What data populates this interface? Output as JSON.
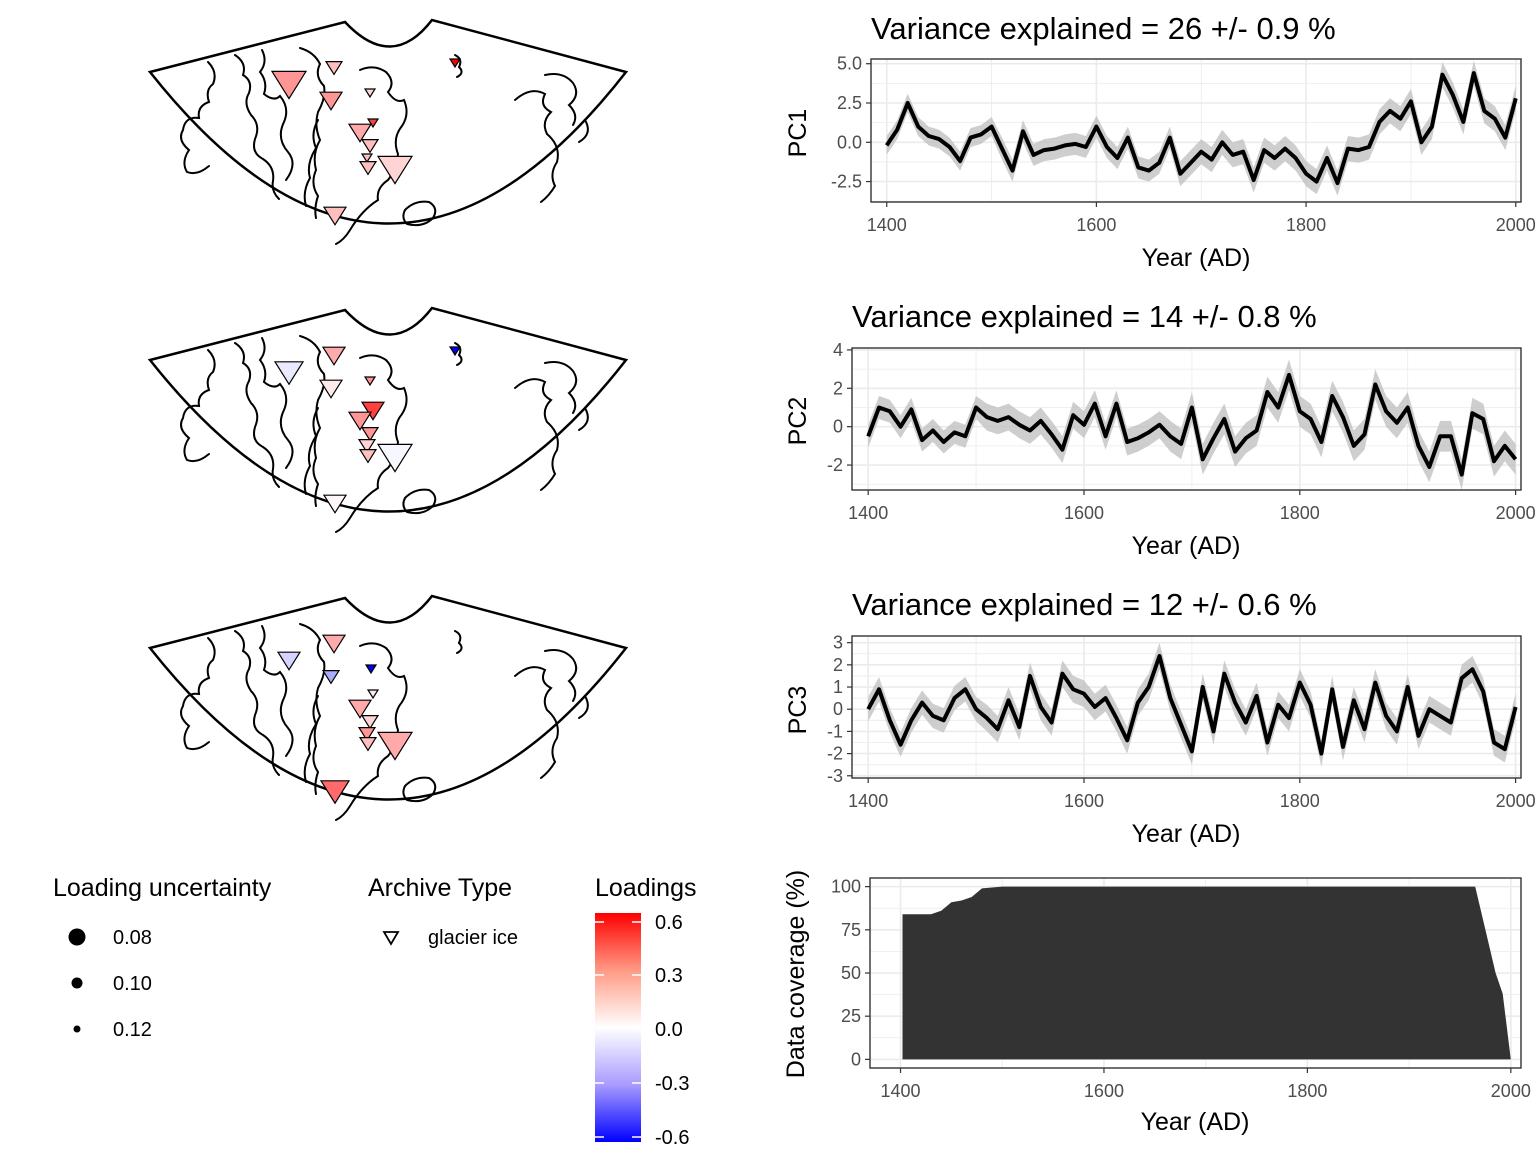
{
  "colors": {
    "loading_high": "#ff0000",
    "loading_mid": "#ffffff",
    "loading_low": "#0000ff",
    "line": "#000000",
    "ribbon": "#bdbdbd",
    "coverage_fill": "#333333",
    "grid": "#ebebeb"
  },
  "maps": [
    {
      "sites": [
        {
          "loading": 0.6,
          "unc": 0.12
        },
        {
          "loading": 0.25,
          "unc": 0.08
        },
        {
          "loading": 0.15,
          "unc": 0.11
        },
        {
          "loading": 0.25,
          "unc": 0.1
        },
        {
          "loading": 0.1,
          "unc": 0.12
        },
        {
          "loading": 0.45,
          "unc": 0.12
        },
        {
          "loading": 0.2,
          "unc": 0.1
        },
        {
          "loading": 0.15,
          "unc": 0.11
        },
        {
          "loading": 0.15,
          "unc": 0.12
        },
        {
          "loading": 0.15,
          "unc": 0.11
        },
        {
          "loading": 0.1,
          "unc": 0.08
        },
        {
          "loading": 0.15,
          "unc": 0.1
        }
      ]
    },
    {
      "sites": [
        {
          "loading": -0.6,
          "unc": 0.12
        },
        {
          "loading": -0.05,
          "unc": 0.09
        },
        {
          "loading": 0.2,
          "unc": 0.1
        },
        {
          "loading": 0.05,
          "unc": 0.1
        },
        {
          "loading": 0.25,
          "unc": 0.12
        },
        {
          "loading": 0.45,
          "unc": 0.1
        },
        {
          "loading": 0.25,
          "unc": 0.1
        },
        {
          "loading": 0.25,
          "unc": 0.11
        },
        {
          "loading": 0.1,
          "unc": 0.11
        },
        {
          "loading": 0.15,
          "unc": 0.11
        },
        {
          "loading": -0.02,
          "unc": 0.08
        },
        {
          "loading": 0.02,
          "unc": 0.1
        }
      ]
    },
    {
      "sites": [
        {
          "loading": -0.1,
          "unc": 0.1
        },
        {
          "loading": 0.2,
          "unc": 0.1
        },
        {
          "loading": -0.6,
          "unc": 0.12
        },
        {
          "loading": -0.2,
          "unc": 0.11
        },
        {
          "loading": 0.05,
          "unc": 0.12
        },
        {
          "loading": 0.2,
          "unc": 0.1
        },
        {
          "loading": 0.1,
          "unc": 0.11
        },
        {
          "loading": 0.25,
          "unc": 0.11
        },
        {
          "loading": 0.15,
          "unc": 0.11
        },
        {
          "loading": 0.2,
          "unc": 0.08
        },
        {
          "loading": 0.35,
          "unc": 0.09
        }
      ]
    }
  ],
  "legend": {
    "uncertainty_title": "Loading uncertainty",
    "uncertainty_items": [
      "0.08",
      "0.10",
      "0.12"
    ],
    "archive_title": "Archive Type",
    "archive_items": [
      "glacier ice"
    ],
    "loadings_title": "Loadings",
    "loadings_ticks": [
      "0.6",
      "0.3",
      "0.0",
      "-0.3",
      "-0.6"
    ]
  },
  "chart_data": [
    {
      "type": "line",
      "title": "Variance explained = 26 +/- 0.9 %",
      "xlabel": "Year (AD)",
      "ylabel": "PC1",
      "xlim": [
        1385,
        2005
      ],
      "ylim": [
        -3.8,
        5.3
      ],
      "x_ticks": [
        "1400",
        "1600",
        "1800",
        "2000"
      ],
      "y_ticks": [
        "5.0",
        "2.5",
        "0.0",
        "-2.5"
      ],
      "grid": true,
      "x": [
        1400,
        1410,
        1420,
        1430,
        1440,
        1450,
        1460,
        1470,
        1480,
        1490,
        1500,
        1510,
        1520,
        1530,
        1540,
        1550,
        1560,
        1570,
        1580,
        1590,
        1600,
        1610,
        1620,
        1630,
        1640,
        1650,
        1660,
        1670,
        1680,
        1690,
        1700,
        1710,
        1720,
        1730,
        1740,
        1750,
        1760,
        1770,
        1780,
        1790,
        1800,
        1810,
        1820,
        1830,
        1840,
        1850,
        1860,
        1870,
        1880,
        1890,
        1900,
        1910,
        1920,
        1930,
        1940,
        1950,
        1960,
        1970,
        1980,
        1990,
        2000
      ],
      "values": [
        -0.2,
        0.8,
        2.5,
        1.0,
        0.4,
        0.2,
        -0.3,
        -1.2,
        0.3,
        0.5,
        1.0,
        -0.4,
        -1.8,
        0.7,
        -0.8,
        -0.5,
        -0.4,
        -0.2,
        -0.1,
        -0.3,
        1.0,
        -0.3,
        -1.0,
        0.3,
        -1.6,
        -1.8,
        -1.3,
        0.3,
        -2.0,
        -1.3,
        -0.6,
        -1.1,
        0.0,
        -0.8,
        -0.6,
        -2.4,
        -0.5,
        -1.0,
        -0.4,
        -1.0,
        -2.0,
        -2.5,
        -1.0,
        -2.6,
        -0.4,
        -0.5,
        -0.3,
        1.3,
        2.0,
        1.5,
        2.6,
        0.0,
        1.0,
        4.3,
        3.0,
        1.3,
        4.4,
        2.0,
        1.5,
        0.3,
        2.8
      ],
      "band": [
        0.6,
        0.6,
        0.6,
        0.6,
        0.6,
        0.6,
        0.6,
        0.6,
        0.6,
        0.6,
        0.6,
        0.7,
        0.7,
        0.7,
        0.7,
        0.7,
        0.7,
        0.7,
        0.7,
        0.7,
        0.7,
        0.7,
        0.7,
        0.7,
        0.7,
        0.7,
        0.7,
        0.7,
        0.8,
        0.8,
        0.8,
        0.8,
        0.8,
        0.8,
        0.8,
        0.8,
        0.8,
        0.8,
        0.8,
        0.8,
        0.8,
        0.8,
        0.8,
        0.8,
        0.8,
        0.8,
        0.8,
        0.8,
        0.8,
        0.8,
        0.8,
        0.8,
        0.8,
        0.8,
        0.8,
        0.8,
        0.8,
        0.8,
        0.8,
        0.8,
        0.8
      ]
    },
    {
      "type": "line",
      "title": "Variance explained = 14 +/- 0.8 %",
      "xlabel": "Year (AD)",
      "ylabel": "PC2",
      "xlim": [
        1385,
        2005
      ],
      "ylim": [
        -3.3,
        4.1
      ],
      "x_ticks": [
        "1400",
        "1600",
        "1800",
        "2000"
      ],
      "y_ticks": [
        "4",
        "2",
        "0",
        "-2"
      ],
      "grid": true,
      "x": [
        1400,
        1410,
        1420,
        1430,
        1440,
        1450,
        1460,
        1470,
        1480,
        1490,
        1500,
        1510,
        1520,
        1530,
        1540,
        1550,
        1560,
        1570,
        1580,
        1590,
        1600,
        1610,
        1620,
        1630,
        1640,
        1650,
        1660,
        1670,
        1680,
        1690,
        1700,
        1710,
        1720,
        1730,
        1740,
        1750,
        1760,
        1770,
        1780,
        1790,
        1800,
        1810,
        1820,
        1830,
        1840,
        1850,
        1860,
        1870,
        1880,
        1890,
        1900,
        1910,
        1920,
        1930,
        1940,
        1950,
        1960,
        1970,
        1980,
        1990,
        2000
      ],
      "values": [
        -0.5,
        1.0,
        0.8,
        0.0,
        0.9,
        -0.7,
        -0.2,
        -0.8,
        -0.3,
        -0.5,
        1.0,
        0.5,
        0.3,
        0.5,
        0.1,
        -0.2,
        0.3,
        -0.4,
        -1.2,
        0.6,
        0.1,
        1.2,
        -0.5,
        1.2,
        -0.8,
        -0.6,
        -0.3,
        0.1,
        -0.5,
        -0.9,
        1.0,
        -1.7,
        -0.6,
        0.4,
        -1.3,
        -0.6,
        -0.2,
        1.8,
        1.0,
        2.7,
        0.8,
        0.4,
        -0.8,
        1.6,
        0.5,
        -1.0,
        -0.4,
        2.2,
        0.8,
        0.2,
        1.0,
        -1.0,
        -2.1,
        -0.5,
        -0.5,
        -2.5,
        0.7,
        0.4,
        -1.8,
        -1.0,
        -1.7
      ],
      "band": [
        0.6,
        0.6,
        0.6,
        0.6,
        0.6,
        0.6,
        0.6,
        0.6,
        0.6,
        0.6,
        0.6,
        0.7,
        0.7,
        0.7,
        0.7,
        0.7,
        0.7,
        0.7,
        0.7,
        0.7,
        0.7,
        0.7,
        0.7,
        0.7,
        0.7,
        0.7,
        0.7,
        0.7,
        0.8,
        0.8,
        0.8,
        0.8,
        0.8,
        0.8,
        0.8,
        0.8,
        0.8,
        0.8,
        0.8,
        0.8,
        0.8,
        0.8,
        0.8,
        0.8,
        0.8,
        0.8,
        0.8,
        0.8,
        0.8,
        0.8,
        0.8,
        0.8,
        0.8,
        0.8,
        0.8,
        0.8,
        0.8,
        0.8,
        0.8,
        0.8,
        0.8
      ]
    },
    {
      "type": "line",
      "title": "Variance explained = 12 +/- 0.6 %",
      "xlabel": "Year (AD)",
      "ylabel": "PC3",
      "xlim": [
        1385,
        2005
      ],
      "ylim": [
        -3.1,
        3.3
      ],
      "x_ticks": [
        "1400",
        "1600",
        "1800",
        "2000"
      ],
      "y_ticks": [
        "3",
        "2",
        "1",
        "0",
        "-1",
        "-2",
        "-3"
      ],
      "grid": true,
      "x": [
        1400,
        1410,
        1420,
        1430,
        1440,
        1450,
        1460,
        1470,
        1480,
        1490,
        1500,
        1510,
        1520,
        1530,
        1540,
        1550,
        1560,
        1570,
        1580,
        1590,
        1600,
        1610,
        1620,
        1630,
        1640,
        1650,
        1660,
        1670,
        1680,
        1690,
        1700,
        1710,
        1720,
        1730,
        1740,
        1750,
        1760,
        1770,
        1780,
        1790,
        1800,
        1810,
        1820,
        1830,
        1840,
        1850,
        1860,
        1870,
        1880,
        1890,
        1900,
        1910,
        1920,
        1930,
        1940,
        1950,
        1960,
        1970,
        1980,
        1990,
        2000
      ],
      "values": [
        0.0,
        0.9,
        -0.5,
        -1.6,
        -0.5,
        0.3,
        -0.3,
        -0.5,
        0.5,
        0.9,
        0.0,
        -0.4,
        -0.9,
        0.4,
        -0.8,
        1.5,
        0.1,
        -0.6,
        1.6,
        0.9,
        0.7,
        0.1,
        0.5,
        -0.4,
        -1.4,
        0.3,
        1.0,
        2.4,
        0.5,
        -0.7,
        -1.9,
        1.0,
        -1.0,
        1.6,
        0.3,
        -0.6,
        0.6,
        -1.5,
        0.2,
        -0.4,
        1.2,
        0.2,
        -2.0,
        0.9,
        -1.7,
        0.4,
        -0.9,
        1.2,
        -0.3,
        -1.0,
        1.0,
        -1.2,
        0.0,
        -0.3,
        -0.6,
        1.4,
        1.8,
        0.8,
        -1.5,
        -1.8,
        0.1
      ],
      "band": [
        0.55,
        0.55,
        0.55,
        0.55,
        0.55,
        0.55,
        0.55,
        0.55,
        0.55,
        0.55,
        0.55,
        0.6,
        0.6,
        0.6,
        0.6,
        0.6,
        0.6,
        0.6,
        0.6,
        0.6,
        0.6,
        0.6,
        0.6,
        0.6,
        0.6,
        0.6,
        0.6,
        0.6,
        0.6,
        0.6,
        0.6,
        0.6,
        0.6,
        0.6,
        0.6,
        0.6,
        0.6,
        0.6,
        0.6,
        0.6,
        0.6,
        0.6,
        0.6,
        0.6,
        0.6,
        0.6,
        0.6,
        0.6,
        0.6,
        0.6,
        0.6,
        0.6,
        0.6,
        0.6,
        0.6,
        0.6,
        0.6,
        0.6,
        0.6,
        0.6,
        0.6
      ]
    },
    {
      "type": "area",
      "title": "",
      "xlabel": "Year (AD)",
      "ylabel": "Data coverage (%)",
      "xlim": [
        1370,
        2010
      ],
      "ylim": [
        -5,
        105
      ],
      "x_ticks": [
        "1400",
        "1600",
        "1800",
        "2000"
      ],
      "y_ticks": [
        "100",
        "75",
        "50",
        "25",
        "0"
      ],
      "grid": true,
      "x": [
        1402,
        1410,
        1420,
        1430,
        1440,
        1450,
        1460,
        1470,
        1480,
        1500,
        1600,
        1700,
        1800,
        1900,
        1965,
        1975,
        1985,
        1992,
        2000
      ],
      "values": [
        84,
        84,
        84,
        84,
        86,
        91,
        92,
        94,
        99,
        100,
        100,
        100,
        100,
        100,
        100,
        75,
        50,
        38,
        0
      ]
    }
  ]
}
